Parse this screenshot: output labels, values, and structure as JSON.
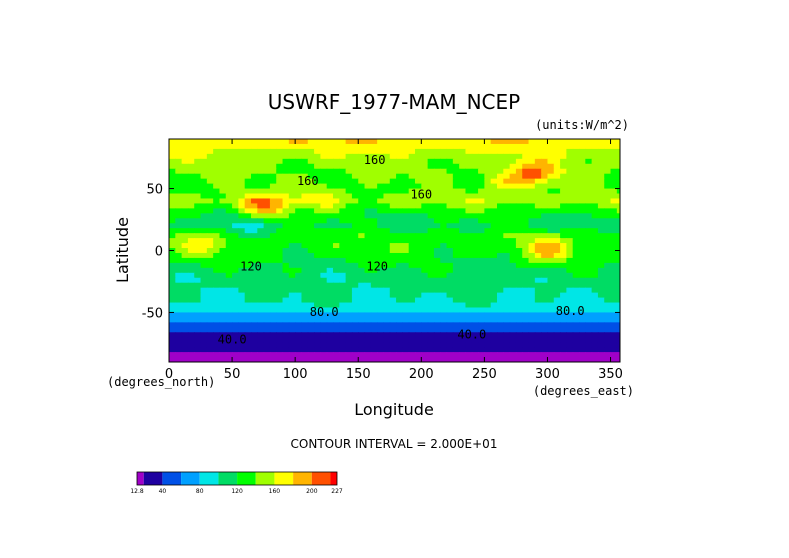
{
  "chart_data": {
    "type": "heatmap",
    "title": "USWRF_1977-MAM_NCEP",
    "units": "(units:W/m^2)",
    "xlabel": "Longitude",
    "ylabel": "Latitude",
    "x_unit_label": "(degrees_east)",
    "y_unit_label": "(degrees_north)",
    "xlim": [
      0,
      357.5
    ],
    "ylim": [
      -90,
      90
    ],
    "x_ticks": [
      "0",
      "50",
      "100",
      "150",
      "200",
      "250",
      "300",
      "350"
    ],
    "x_tick_values": [
      0,
      50,
      100,
      150,
      200,
      250,
      300,
      350
    ],
    "y_ticks": [
      "50",
      "0",
      "-50"
    ],
    "y_tick_values": [
      50,
      0,
      -50
    ],
    "contour_interval_text": "CONTOUR INTERVAL = 2.000E+01",
    "contour_labels": [
      {
        "text": "160",
        "lon": 163,
        "lat": 70
      },
      {
        "text": "160",
        "lon": 110,
        "lat": 53
      },
      {
        "text": "160",
        "lon": 200,
        "lat": 42
      },
      {
        "text": "120",
        "lon": 65,
        "lat": -16
      },
      {
        "text": "120",
        "lon": 165,
        "lat": -16
      },
      {
        "text": "80.0",
        "lon": 123,
        "lat": -53
      },
      {
        "text": "80.0",
        "lon": 318,
        "lat": -52
      },
      {
        "text": "40.0",
        "lon": 240,
        "lat": -71
      },
      {
        "text": "40.0",
        "lon": 50,
        "lat": -75
      }
    ],
    "zonal_profile": [
      {
        "lat": 85,
        "value": 175
      },
      {
        "lat": 80,
        "value": 160
      },
      {
        "lat": 70,
        "value": 145
      },
      {
        "lat": 60,
        "value": 140
      },
      {
        "lat": 50,
        "value": 135
      },
      {
        "lat": 40,
        "value": 150
      },
      {
        "lat": 30,
        "value": 125
      },
      {
        "lat": 20,
        "value": 115
      },
      {
        "lat": 10,
        "value": 135
      },
      {
        "lat": 0,
        "value": 130
      },
      {
        "lat": -10,
        "value": 120
      },
      {
        "lat": -20,
        "value": 110
      },
      {
        "lat": -30,
        "value": 105
      },
      {
        "lat": -40,
        "value": 100
      },
      {
        "lat": -50,
        "value": 85
      },
      {
        "lat": -55,
        "value": 70
      },
      {
        "lat": -60,
        "value": 55
      },
      {
        "lat": -65,
        "value": 45
      },
      {
        "lat": -70,
        "value": 35
      },
      {
        "lat": -75,
        "value": 40
      },
      {
        "lat": -80,
        "value": 35
      },
      {
        "lat": -85,
        "value": 15
      }
    ],
    "hotspots": [
      {
        "lon": 290,
        "lat": 62,
        "value": 205
      },
      {
        "lon": 300,
        "lat": 0,
        "value": 185
      },
      {
        "lon": 75,
        "lat": 35,
        "value": 200
      },
      {
        "lon": 265,
        "lat": 55,
        "value": 170
      },
      {
        "lon": 25,
        "lat": 5,
        "value": 165
      },
      {
        "lon": 120,
        "lat": 45,
        "value": 170
      }
    ],
    "coldspots": [
      {
        "lon": 60,
        "lat": 20,
        "value": 95
      }
    ],
    "colorbar": {
      "tick_labels": [
        "12.8",
        "40",
        "80",
        "120",
        "160",
        "200",
        "227"
      ],
      "tick_values": [
        12.8,
        40,
        80,
        120,
        160,
        200,
        227
      ],
      "bin_edges": [
        12.8,
        20,
        40,
        60,
        80,
        100,
        120,
        140,
        160,
        180,
        200,
        220,
        227
      ],
      "colors": [
        "#a000c8",
        "#1e00a0",
        "#0050e6",
        "#00a0ff",
        "#00e6e6",
        "#00dc64",
        "#00ff00",
        "#a0ff00",
        "#ffff00",
        "#ffb400",
        "#ff5000",
        "#ff0000"
      ]
    }
  }
}
